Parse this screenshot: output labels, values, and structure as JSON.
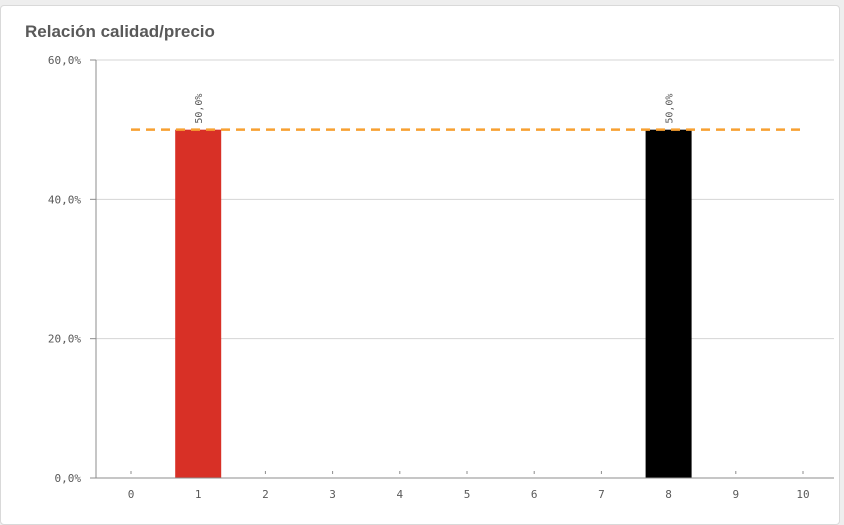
{
  "chart_data": {
    "type": "bar",
    "title": "Relación calidad/precio",
    "categories": [
      "0",
      "1",
      "2",
      "3",
      "4",
      "5",
      "6",
      "7",
      "8",
      "9",
      "10"
    ],
    "values": [
      0,
      50.0,
      0,
      0,
      0,
      0,
      0,
      0,
      50.0,
      0,
      0
    ],
    "bar_colors": [
      "",
      "#d83026",
      "",
      "",
      "",
      "",
      "",
      "",
      "",
      "#cfd85c",
      ""
    ],
    "data_labels": [
      "",
      "50,0%",
      "",
      "",
      "",
      "",
      "",
      "",
      "50,0%",
      "",
      ""
    ],
    "ylim": [
      0,
      60
    ],
    "yticks": [
      0,
      20,
      40,
      60
    ],
    "ytick_labels": [
      "0,0%",
      "20,0%",
      "40,0%",
      "60,0%"
    ],
    "grid": true,
    "reference_line": {
      "value": 50,
      "color": "#f7a032",
      "style": "dashed"
    },
    "xlabel": "",
    "ylabel": ""
  }
}
